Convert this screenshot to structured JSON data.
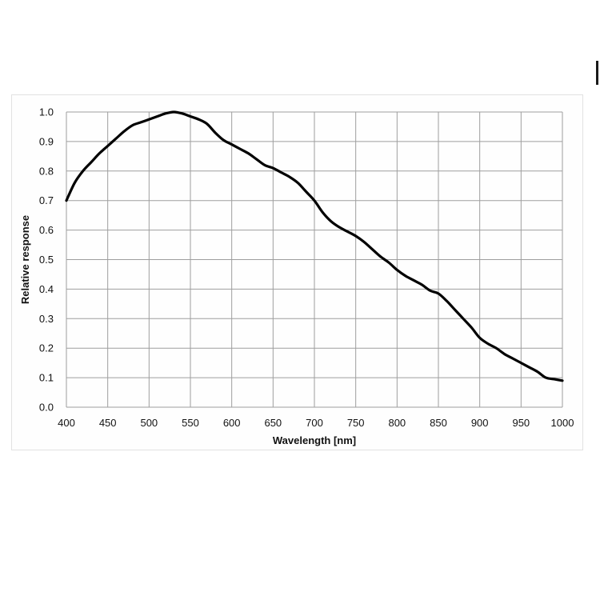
{
  "chart_data": {
    "type": "line",
    "title": "",
    "xlabel": "Wavelength [nm]",
    "ylabel": "Relative response",
    "xlim": [
      400,
      1000
    ],
    "ylim": [
      0.0,
      1.0
    ],
    "x_ticks": [
      "400",
      "450",
      "500",
      "550",
      "600",
      "650",
      "700",
      "750",
      "800",
      "850",
      "900",
      "950",
      "1000"
    ],
    "y_ticks": [
      "0.0",
      "0.1",
      "0.2",
      "0.3",
      "0.4",
      "0.5",
      "0.6",
      "0.7",
      "0.8",
      "0.9",
      "1.0"
    ],
    "grid": true,
    "legend": "none",
    "line_color": "#000000",
    "series": [
      {
        "x": [
          400,
          410,
          420,
          430,
          440,
          450,
          460,
          470,
          480,
          490,
          500,
          510,
          520,
          530,
          540,
          550,
          560,
          570,
          580,
          590,
          600,
          610,
          620,
          630,
          640,
          650,
          660,
          670,
          680,
          690,
          700,
          710,
          720,
          730,
          740,
          750,
          760,
          770,
          780,
          790,
          800,
          810,
          820,
          830,
          840,
          850,
          860,
          870,
          880,
          890,
          900,
          910,
          920,
          930,
          940,
          950,
          960,
          970,
          980,
          990,
          1000
        ],
        "y": [
          0.7,
          0.76,
          0.8,
          0.83,
          0.86,
          0.885,
          0.91,
          0.935,
          0.955,
          0.965,
          0.975,
          0.985,
          0.995,
          1.0,
          0.995,
          0.985,
          0.975,
          0.96,
          0.93,
          0.905,
          0.89,
          0.875,
          0.86,
          0.84,
          0.82,
          0.81,
          0.795,
          0.78,
          0.76,
          0.73,
          0.7,
          0.66,
          0.63,
          0.61,
          0.595,
          0.58,
          0.56,
          0.535,
          0.51,
          0.49,
          0.465,
          0.445,
          0.43,
          0.415,
          0.395,
          0.385,
          0.36,
          0.33,
          0.3,
          0.27,
          0.235,
          0.215,
          0.2,
          0.18,
          0.165,
          0.15,
          0.135,
          0.12,
          0.1,
          0.095,
          0.09
        ]
      }
    ]
  }
}
